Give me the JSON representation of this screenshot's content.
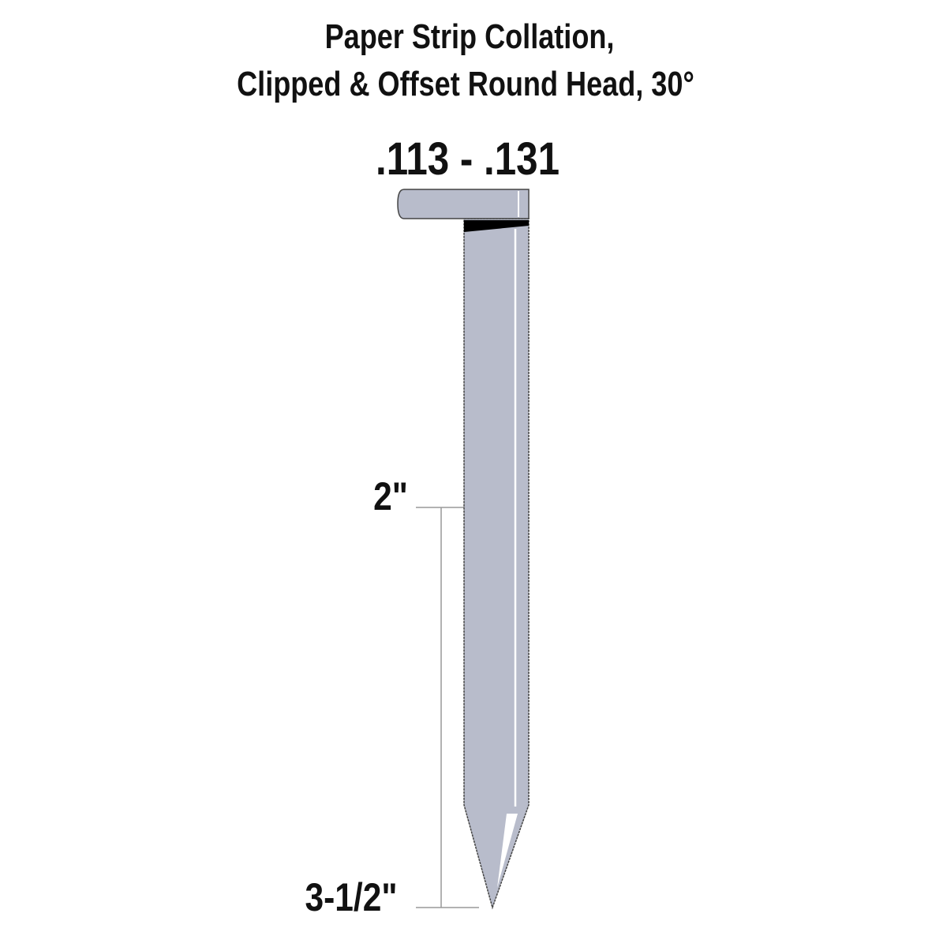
{
  "title": {
    "line1": "Paper Strip Collation,",
    "line2": "Clipped & Offset Round Head, 30°"
  },
  "gauge_range": ".113 - .131",
  "lengths": {
    "min": "2\"",
    "max": "3-1/2\""
  },
  "colors": {
    "nail_fill": "#b8bccb",
    "outline": "#444444",
    "dimension_line": "#999999"
  }
}
